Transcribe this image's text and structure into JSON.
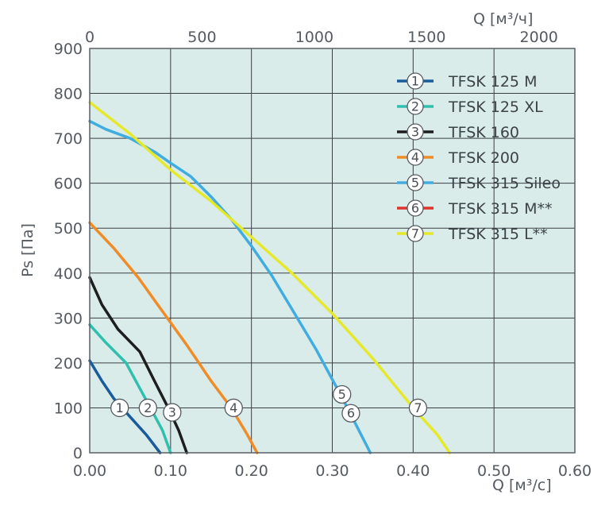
{
  "chart_data": {
    "type": "line",
    "x_axis": {
      "label": "Q [м³/с]",
      "range": [
        0,
        0.6
      ],
      "ticks": [
        0,
        0.1,
        0.2,
        0.3,
        0.4,
        0.5,
        0.6
      ],
      "tick_labels": [
        "0.00",
        "0.10",
        "0.20",
        "0.30",
        "0.40",
        "0.50",
        "0.60"
      ]
    },
    "x2_axis": {
      "label": "Q [м³/ч]",
      "range": [
        0,
        2160
      ],
      "ticks": [
        0,
        500,
        1000,
        1500,
        2000
      ],
      "tick_labels": [
        "0",
        "500",
        "1000",
        "1500",
        "2000"
      ]
    },
    "y_axis": {
      "label": "Ps [Па]",
      "range": [
        0,
        900
      ],
      "ticks": [
        0,
        100,
        200,
        300,
        400,
        500,
        600,
        700,
        800,
        900
      ],
      "tick_labels": [
        "0",
        "100",
        "200",
        "300",
        "400",
        "500",
        "600",
        "700",
        "800",
        "900"
      ]
    },
    "grid": true,
    "legend_position": "top-right",
    "plot_background": "#d9ecea",
    "series": [
      {
        "id": "1",
        "name": "TFSK 125 M",
        "color": "#1a5b9c",
        "x": [
          0,
          0.015,
          0.03,
          0.05,
          0.07,
          0.087
        ],
        "y": [
          205,
          160,
          120,
          80,
          40,
          0
        ]
      },
      {
        "id": "2",
        "name": "TFSK 125 XL",
        "color": "#2fbfaf",
        "x": [
          0,
          0.02,
          0.045,
          0.06,
          0.075,
          0.09,
          0.1
        ],
        "y": [
          285,
          245,
          200,
          150,
          100,
          50,
          0
        ]
      },
      {
        "id": "3",
        "name": "TFSK 160",
        "color": "#1e1e1e",
        "x": [
          0,
          0.015,
          0.035,
          0.062,
          0.08,
          0.097,
          0.11,
          0.12
        ],
        "y": [
          390,
          330,
          275,
          225,
          160,
          100,
          50,
          0
        ]
      },
      {
        "id": "4",
        "name": "TFSK 200",
        "color": "#f08c28",
        "x": [
          0,
          0.03,
          0.06,
          0.09,
          0.12,
          0.15,
          0.175,
          0.195,
          0.207
        ],
        "y": [
          512,
          455,
          390,
          315,
          240,
          160,
          100,
          40,
          0
        ]
      },
      {
        "id": "5",
        "name": "TFSK 315 Sileo",
        "color": "#40ace0",
        "x": [
          0,
          0.02,
          0.05,
          0.08,
          0.1,
          0.125,
          0.15,
          0.175,
          0.2,
          0.225,
          0.25,
          0.28,
          0.31,
          0.33,
          0.347
        ],
        "y": [
          738,
          720,
          700,
          670,
          645,
          615,
          570,
          520,
          460,
          395,
          320,
          230,
          130,
          60,
          0
        ]
      },
      {
        "id": "6",
        "name": "TFSK 315 M**",
        "color": "#e0342a",
        "x": [],
        "y": []
      },
      {
        "id": "7",
        "name": "TFSK 315 L**",
        "color": "#e6e82a",
        "x": [
          0,
          0.05,
          0.1,
          0.15,
          0.2,
          0.25,
          0.3,
          0.35,
          0.4,
          0.43,
          0.445
        ],
        "y": [
          780,
          710,
          630,
          560,
          480,
          400,
          310,
          210,
          100,
          40,
          0
        ]
      }
    ],
    "annotations": [
      {
        "text": "1",
        "x": 0.037,
        "y": 100
      },
      {
        "text": "2",
        "x": 0.072,
        "y": 100
      },
      {
        "text": "3",
        "x": 0.102,
        "y": 90
      },
      {
        "text": "4",
        "x": 0.178,
        "y": 100
      },
      {
        "text": "5",
        "x": 0.312,
        "y": 130
      },
      {
        "text": "6",
        "x": 0.323,
        "y": 88
      },
      {
        "text": "7",
        "x": 0.406,
        "y": 100
      }
    ]
  }
}
